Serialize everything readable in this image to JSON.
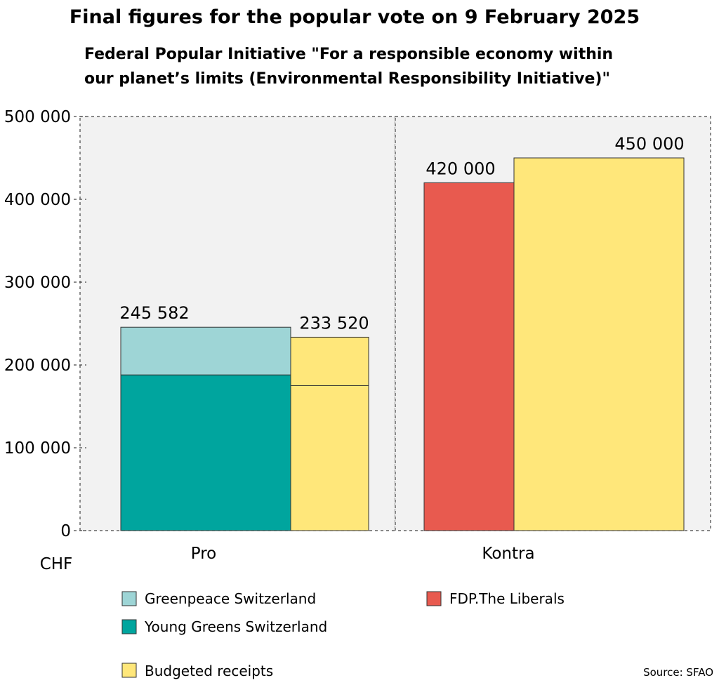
{
  "chart_data": {
    "type": "bar",
    "title": "Final figures for the popular vote on 9 February 2025",
    "subtitle_lines": [
      "Federal Popular Initiative \"For a responsible economy within",
      "our planet’s limits (Environmental Responsibility Initiative)\""
    ],
    "unit_label": "CHF",
    "ylim": [
      0,
      500000
    ],
    "yticks": [
      0,
      100000,
      200000,
      300000,
      400000,
      500000
    ],
    "ytick_labels": [
      "0",
      "100 000",
      "200 000",
      "300 000",
      "400 000",
      "500 000"
    ],
    "grid": false,
    "categories": [
      "Pro",
      "Kontra"
    ],
    "groups": [
      {
        "category": "Pro",
        "bars": [
          {
            "kind": "stacked",
            "segments": [
              {
                "name": "Young Greens Switzerland",
                "value": 188000,
                "color": "#00A59E"
              },
              {
                "name": "Greenpeace Switzerland",
                "value": 57582,
                "color": "#9ED5D6"
              }
            ],
            "total": 245582,
            "total_label": "245 582"
          },
          {
            "kind": "budget",
            "name": "Budgeted receipts",
            "value": 233520,
            "value_label": "233 520",
            "inner_line_value": 175000,
            "color": "#FFE77A"
          }
        ]
      },
      {
        "category": "Kontra",
        "bars": [
          {
            "kind": "single",
            "name": "FDP.The Liberals",
            "value": 420000,
            "value_label": "420 000",
            "color": "#E85A4F"
          },
          {
            "kind": "budget",
            "name": "Budgeted receipts",
            "value": 450000,
            "value_label": "450 000",
            "color": "#FFE77A"
          }
        ]
      }
    ],
    "legend": [
      {
        "label": "Greenpeace Switzerland",
        "color": "#9ED5D6"
      },
      {
        "label": "Young Greens Switzerland",
        "color": "#00A59E"
      },
      {
        "label": "Budgeted receipts",
        "color": "#FFE77A"
      },
      {
        "label": "FDP.The Liberals",
        "color": "#E85A4F"
      }
    ],
    "source": "Source: SFAO",
    "colors": {
      "panel_bg": "#F2F2F2",
      "bar_stroke": "#333333"
    }
  }
}
